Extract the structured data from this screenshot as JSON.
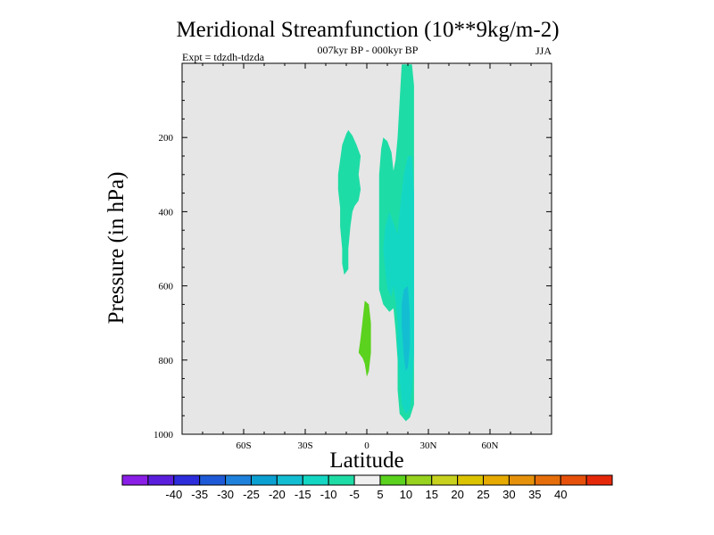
{
  "chart_data": {
    "type": "contour",
    "title": "Meridional Streamfunction (10**9kg/m-2)",
    "center_subtitle": "007kyr BP - 000kyr BP",
    "left_subtitle": "Expt = tdzdh-tdzda",
    "right_subtitle": "JJA",
    "xlabel": "Latitude",
    "ylabel": "Pressure (in hPa)",
    "xlim": [
      -90,
      90
    ],
    "ylim": [
      0,
      1000
    ],
    "y_inverted": true,
    "x_ticks": [
      {
        "value": -60,
        "label": "60S"
      },
      {
        "value": -30,
        "label": "30S"
      },
      {
        "value": 0,
        "label": "0"
      },
      {
        "value": 30,
        "label": "30N"
      },
      {
        "value": 60,
        "label": "60N"
      }
    ],
    "y_ticks": [
      {
        "value": 200,
        "label": "200"
      },
      {
        "value": 400,
        "label": "400"
      },
      {
        "value": 600,
        "label": "600"
      },
      {
        "value": 800,
        "label": "800"
      },
      {
        "value": 1000,
        "label": "1000"
      }
    ],
    "background_level_color": "#e6e6e6",
    "colorbar": {
      "orientation": "horizontal",
      "colors": [
        "#8a1ee6",
        "#5a1edc",
        "#2d2ddc",
        "#1e5ad7",
        "#1e82dc",
        "#0aa0d2",
        "#14bed2",
        "#14d7c3",
        "#1edca5",
        "#f0f0f0",
        "#5ad21e",
        "#96d21e",
        "#c8d21e",
        "#dcc300",
        "#e6aa00",
        "#e6910a",
        "#e66e0a",
        "#e6500a",
        "#e6280a"
      ],
      "labels": [
        "-40",
        "-35",
        "-30",
        "-25",
        "-20",
        "-15",
        "-10",
        "-5",
        "5",
        "10",
        "15",
        "20",
        "25",
        "30",
        "35",
        "40"
      ]
    },
    "regions": [
      {
        "name": "upper-sh-lobe",
        "level": "-10 to -5",
        "color": "#1edca5",
        "lat_p": [
          [
            -3,
            340
          ],
          [
            -4,
            300
          ],
          [
            -3,
            250
          ],
          [
            -5,
            220
          ],
          [
            -7,
            195
          ],
          [
            -9,
            180
          ],
          [
            -10,
            190
          ],
          [
            -12,
            220
          ],
          [
            -13,
            260
          ],
          [
            -14,
            300
          ],
          [
            -14,
            340
          ],
          [
            -13,
            390
          ],
          [
            -13,
            440
          ],
          [
            -12,
            500
          ],
          [
            -12,
            540
          ],
          [
            -11,
            570
          ],
          [
            -9,
            555
          ],
          [
            -9,
            500
          ],
          [
            -8,
            440
          ],
          [
            -7,
            400
          ],
          [
            -6,
            385
          ],
          [
            -4,
            370
          ]
        ]
      },
      {
        "name": "main-nh-band",
        "level": "-10 to -5",
        "color": "#1edca5",
        "lat_p": [
          [
            17,
            3
          ],
          [
            22,
            3
          ],
          [
            23,
            60
          ],
          [
            23,
            160
          ],
          [
            23,
            300
          ],
          [
            23,
            450
          ],
          [
            23,
            580
          ],
          [
            23,
            700
          ],
          [
            23,
            820
          ],
          [
            23,
            920
          ],
          [
            21,
            955
          ],
          [
            19,
            965
          ],
          [
            16,
            945
          ],
          [
            15,
            880
          ],
          [
            15,
            800
          ],
          [
            14,
            720
          ],
          [
            13,
            660
          ],
          [
            11,
            670
          ],
          [
            8,
            650
          ],
          [
            6,
            610
          ],
          [
            6,
            540
          ],
          [
            6,
            460
          ],
          [
            6,
            380
          ],
          [
            6,
            300
          ],
          [
            7,
            230
          ],
          [
            8,
            200
          ],
          [
            10,
            210
          ],
          [
            12,
            240
          ],
          [
            13,
            290
          ],
          [
            14,
            260
          ],
          [
            15,
            200
          ],
          [
            16,
            100
          ]
        ]
      },
      {
        "name": "main-nh-core",
        "level": "-15 to -10",
        "color": "#14d7c3",
        "lat_p": [
          [
            22,
            250
          ],
          [
            23,
            350
          ],
          [
            23,
            500
          ],
          [
            23,
            650
          ],
          [
            23,
            780
          ],
          [
            22,
            880
          ],
          [
            21,
            935
          ],
          [
            19,
            945
          ],
          [
            17,
            920
          ],
          [
            16,
            850
          ],
          [
            15,
            760
          ],
          [
            15,
            700
          ],
          [
            14,
            640
          ],
          [
            13,
            600
          ],
          [
            12,
            630
          ],
          [
            10,
            610
          ],
          [
            9,
            560
          ],
          [
            8,
            500
          ],
          [
            9,
            440
          ],
          [
            11,
            400
          ],
          [
            13,
            430
          ],
          [
            15,
            460
          ],
          [
            16,
            400
          ],
          [
            18,
            300
          ],
          [
            20,
            250
          ]
        ]
      },
      {
        "name": "main-nh-inner",
        "level": "-20 to -15",
        "color": "#14bed2",
        "lat_p": [
          [
            20,
            600
          ],
          [
            21,
            680
          ],
          [
            21,
            760
          ],
          [
            20,
            820
          ],
          [
            19,
            830
          ],
          [
            18,
            790
          ],
          [
            17,
            710
          ],
          [
            17,
            650
          ],
          [
            18,
            610
          ]
        ]
      },
      {
        "name": "lower-sh-positive",
        "level": "5 to 10",
        "color": "#5ad21e",
        "lat_p": [
          [
            -1,
            640
          ],
          [
            1,
            650
          ],
          [
            2,
            700
          ],
          [
            2,
            780
          ],
          [
            1,
            830
          ],
          [
            0,
            845
          ],
          [
            -1,
            810
          ],
          [
            -2,
            795
          ],
          [
            -4,
            780
          ],
          [
            -3,
            740
          ],
          [
            -2,
            690
          ]
        ]
      }
    ]
  }
}
